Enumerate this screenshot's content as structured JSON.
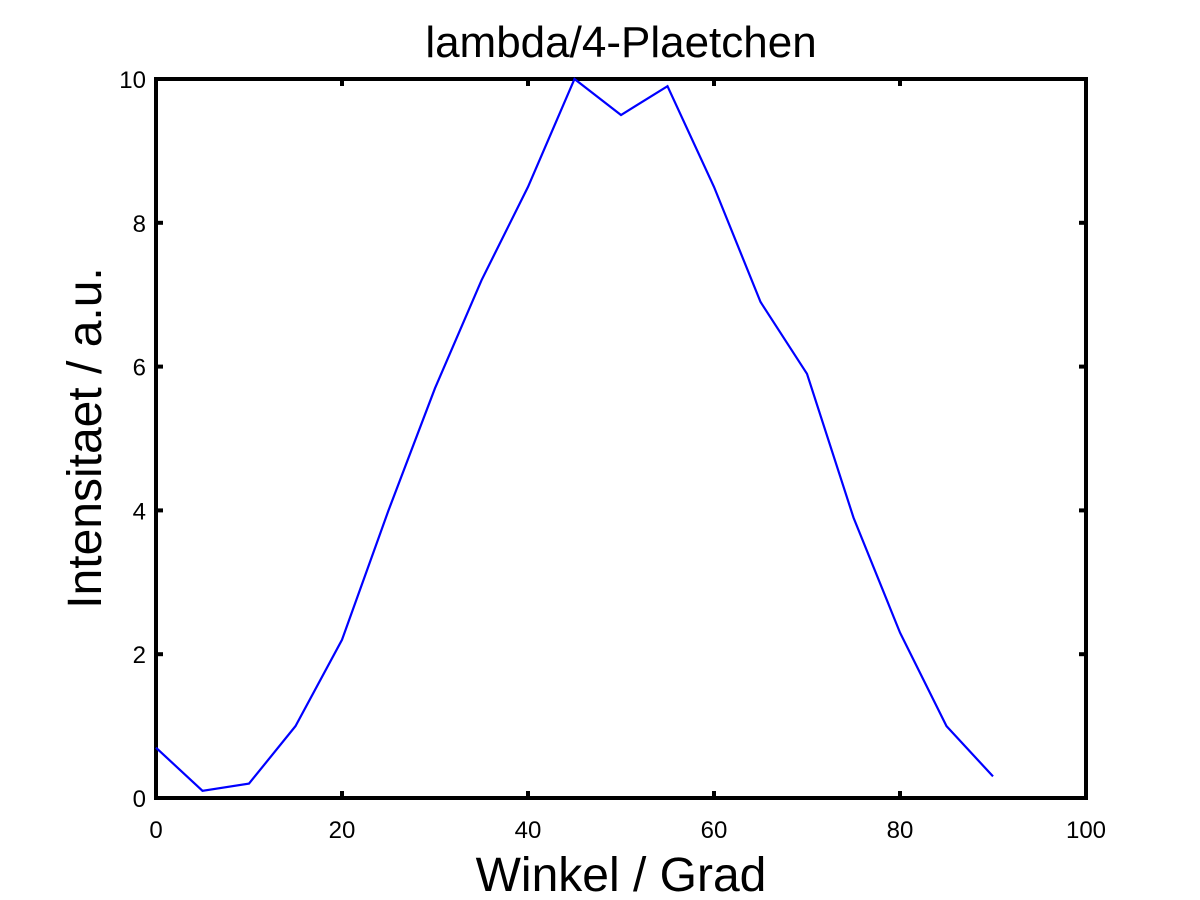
{
  "chart_data": {
    "type": "line",
    "title": "lambda/4-Plaetchen",
    "xlabel": "Winkel / Grad",
    "ylabel": "Intensitaet / a.u.",
    "xlim": [
      0,
      100
    ],
    "ylim": [
      0,
      10
    ],
    "xticks": [
      "0",
      "20",
      "40",
      "60",
      "80",
      "100"
    ],
    "yticks": [
      "0",
      "2",
      "4",
      "6",
      "8",
      "10"
    ],
    "grid": false,
    "line_color": "#0000ff",
    "series": [
      {
        "x": [
          0,
          5,
          10,
          15,
          20,
          25,
          30,
          35,
          40,
          45,
          50,
          55,
          60,
          65,
          70,
          75,
          80,
          85,
          90
        ],
        "values": [
          0.7,
          0.1,
          0.2,
          1.0,
          2.2,
          4.0,
          5.7,
          7.2,
          8.5,
          10.0,
          9.5,
          9.9,
          8.5,
          6.9,
          5.9,
          3.9,
          2.3,
          1.0,
          0.3
        ]
      }
    ]
  }
}
